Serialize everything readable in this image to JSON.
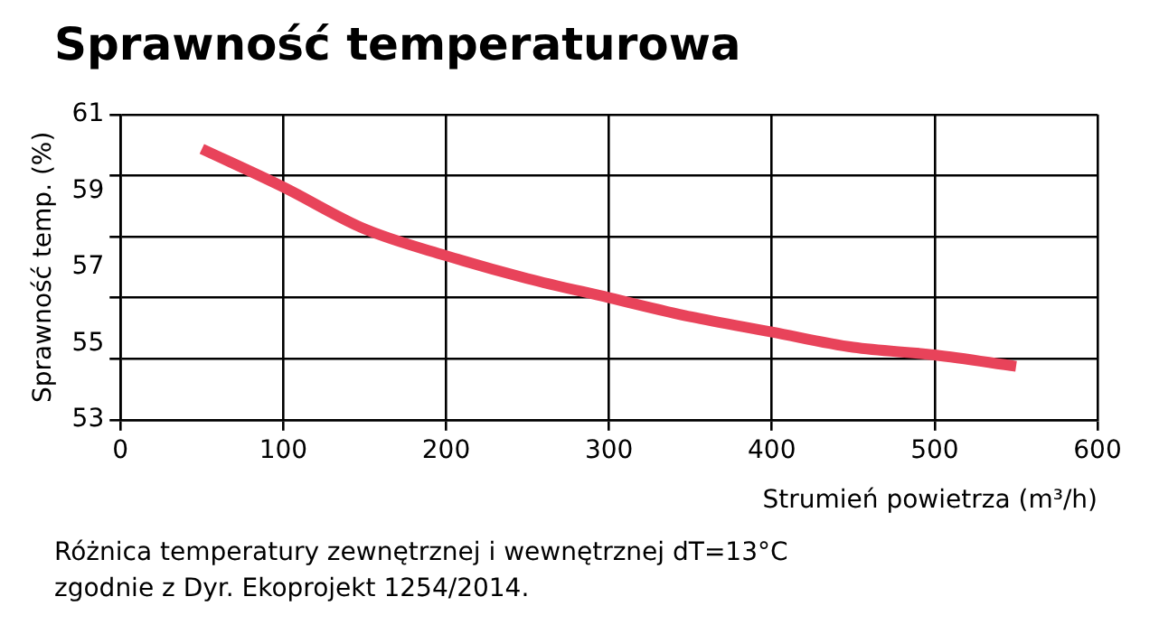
{
  "chart_data": {
    "type": "line",
    "title": "Sprawność temperaturowa",
    "xlabel": "Strumień powietrza (m³/h)",
    "ylabel": "Sprawność temp. (%)",
    "x": [
      50,
      100,
      150,
      200,
      250,
      300,
      350,
      400,
      450,
      500,
      550
    ],
    "series": [
      {
        "color": "#e8435a",
        "values": [
          60.1,
          59.1,
          58.0,
          57.3,
          56.7,
          56.2,
          55.7,
          55.3,
          54.9,
          54.7,
          54.4
        ]
      }
    ],
    "xlim": [
      0,
      600
    ],
    "xticks": [
      0,
      100,
      200,
      300,
      400,
      500,
      600
    ],
    "ylim": [
      53,
      61
    ],
    "yticks": [
      53,
      {
        "value": 54.6,
        "label": null
      },
      55,
      {
        "value": 56.2,
        "label": null
      },
      57,
      {
        "value": 57.8,
        "label": null
      },
      59,
      {
        "value": 59.4,
        "label": null
      },
      61
    ],
    "grid": true,
    "legend": false,
    "marker": "none",
    "line_style": "solid",
    "annotations": [
      "Różnica temperatury zewnętrznej i wewnętrznej dT=13°C",
      "zgodnie z Dyr. Ekoprojekt 1254/2014."
    ]
  }
}
